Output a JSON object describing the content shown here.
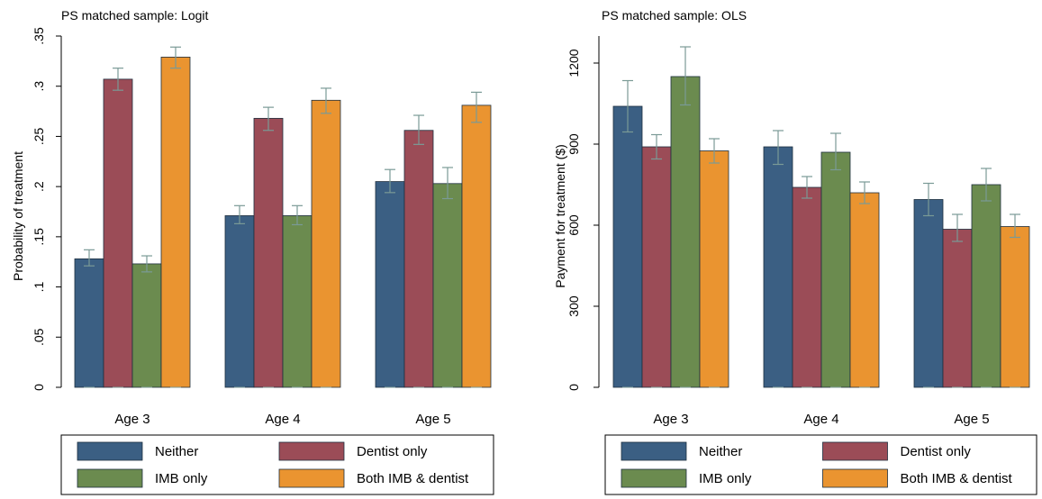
{
  "colors": {
    "neither": "#3b5f83",
    "dentist_only": "#9b4c57",
    "imb_only": "#6b8b4f",
    "both": "#ea9430",
    "error_bar": "#7a9a96",
    "axis": "#000000",
    "legend_border": "#000000",
    "background": "#ffffff"
  },
  "chart_data": [
    {
      "type": "bar",
      "title": "PS matched sample: Logit",
      "xlabel": "",
      "ylabel": "Probability of treatment",
      "categories": [
        "Age 3",
        "Age 4",
        "Age 5"
      ],
      "ylim": [
        0,
        0.35
      ],
      "yticks": [
        0,
        0.05,
        0.1,
        0.15,
        0.2,
        0.25,
        0.3,
        0.35
      ],
      "ytick_labels": [
        "0",
        ".05",
        ".1",
        ".15",
        ".2",
        ".25",
        ".3",
        ".35"
      ],
      "grid": false,
      "legend": "bottom",
      "series": [
        {
          "name": "Neither",
          "color_key": "neither",
          "values": [
            0.128,
            0.171,
            0.205
          ],
          "ci_low": [
            0.121,
            0.163,
            0.194
          ],
          "ci_high": [
            0.137,
            0.181,
            0.217
          ]
        },
        {
          "name": "Dentist only",
          "color_key": "dentist_only",
          "values": [
            0.307,
            0.268,
            0.256
          ],
          "ci_low": [
            0.296,
            0.256,
            0.242
          ],
          "ci_high": [
            0.318,
            0.279,
            0.271
          ]
        },
        {
          "name": "IMB only",
          "color_key": "imb_only",
          "values": [
            0.123,
            0.171,
            0.203
          ],
          "ci_low": [
            0.115,
            0.162,
            0.188
          ],
          "ci_high": [
            0.131,
            0.181,
            0.219
          ]
        },
        {
          "name": "Both IMB & dentist",
          "color_key": "both",
          "values": [
            0.329,
            0.286,
            0.281
          ],
          "ci_low": [
            0.318,
            0.273,
            0.264
          ],
          "ci_high": [
            0.339,
            0.298,
            0.294
          ]
        }
      ]
    },
    {
      "type": "bar",
      "title": "PS matched sample: OLS",
      "xlabel": "",
      "ylabel": "Payment for treatment ($)",
      "categories": [
        "Age 3",
        "Age 4",
        "Age 5"
      ],
      "ylim": [
        0,
        1300
      ],
      "yticks": [
        0,
        300,
        600,
        900,
        1200
      ],
      "ytick_labels": [
        "0",
        "300",
        "600",
        "900",
        "1200"
      ],
      "grid": false,
      "legend": "bottom",
      "series": [
        {
          "name": "Neither",
          "color_key": "neither",
          "values": [
            1040,
            890,
            695
          ],
          "ci_low": [
            945,
            825,
            635
          ],
          "ci_high": [
            1135,
            950,
            755
          ]
        },
        {
          "name": "Dentist only",
          "color_key": "dentist_only",
          "values": [
            890,
            740,
            585
          ],
          "ci_low": [
            845,
            700,
            540
          ],
          "ci_high": [
            935,
            780,
            640
          ]
        },
        {
          "name": "IMB only",
          "color_key": "imb_only",
          "values": [
            1150,
            870,
            750
          ],
          "ci_low": [
            1045,
            805,
            690
          ],
          "ci_high": [
            1260,
            940,
            810
          ]
        },
        {
          "name": "Both IMB & dentist",
          "color_key": "both",
          "values": [
            875,
            720,
            595
          ],
          "ci_low": [
            830,
            680,
            555
          ],
          "ci_high": [
            920,
            760,
            640
          ]
        }
      ]
    }
  ],
  "legend_labels": [
    "Neither",
    "Dentist only",
    "IMB only",
    "Both IMB & dentist"
  ]
}
